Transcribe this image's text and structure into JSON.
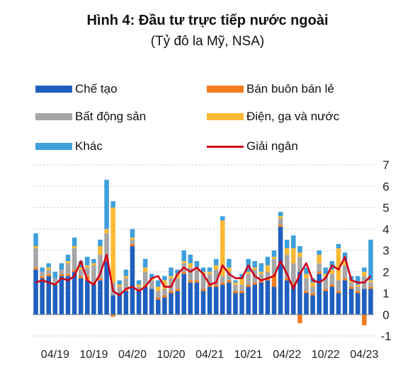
{
  "chart_data": {
    "type": "bar",
    "title": "Hình 4: Đầu tư trực tiếp nước ngoài",
    "subtitle": "(Tỷ đô la Mỹ, NSA)",
    "stacked": true,
    "ylim": [
      -1,
      7
    ],
    "yticks": [
      "-1",
      "0",
      "1",
      "2",
      "3",
      "4",
      "5",
      "6",
      "7"
    ],
    "xtick_labels": [
      "04/19",
      "10/19",
      "04/20",
      "10/20",
      "04/21",
      "10/21",
      "04/22",
      "10/22",
      "04/23"
    ],
    "categories": [
      "01/19",
      "02/19",
      "03/19",
      "04/19",
      "05/19",
      "06/19",
      "07/19",
      "08/19",
      "09/19",
      "10/19",
      "11/19",
      "12/19",
      "01/20",
      "02/20",
      "03/20",
      "04/20",
      "05/20",
      "06/20",
      "07/20",
      "08/20",
      "09/20",
      "10/20",
      "11/20",
      "12/20",
      "01/21",
      "02/21",
      "03/21",
      "04/21",
      "05/21",
      "06/21",
      "07/21",
      "08/21",
      "09/21",
      "10/21",
      "11/21",
      "12/21",
      "01/22",
      "02/22",
      "03/22",
      "04/22",
      "05/22",
      "06/22",
      "07/22",
      "08/22",
      "09/22",
      "10/22",
      "11/22",
      "12/22",
      "01/23",
      "02/23",
      "03/23",
      "04/23",
      "05/23"
    ],
    "colors": {
      "manufacturing": "#1f5fbf",
      "retail": "#f47c20",
      "real_estate": "#a6a6a6",
      "energy": "#fbb935",
      "other": "#3fa0dc",
      "disbursement": "#d0021b"
    },
    "series": [
      {
        "name": "Chế tạo",
        "key": "manufacturing",
        "values": [
          2.1,
          1.7,
          1.8,
          1.4,
          1.8,
          1.8,
          2.0,
          1.7,
          1.6,
          1.4,
          1.6,
          2.5,
          0.9,
          1.0,
          1.1,
          3.2,
          1.1,
          1.3,
          1.2,
          0.7,
          0.8,
          1.0,
          1.1,
          1.9,
          1.5,
          1.5,
          1.1,
          1.3,
          1.3,
          1.4,
          1.5,
          1.0,
          1.0,
          1.3,
          1.4,
          1.5,
          1.6,
          1.3,
          4.1,
          1.6,
          1.4,
          2.0,
          1.0,
          0.9,
          1.9,
          1.1,
          1.3,
          1.0,
          1.6,
          1.2,
          1.0,
          1.2,
          1.2
        ]
      },
      {
        "name": "Bán buôn bán lẻ",
        "key": "retail",
        "values": [
          0.1,
          0.1,
          0.1,
          0.0,
          0.1,
          0.1,
          0.1,
          0.1,
          0.2,
          0.1,
          0.1,
          0.1,
          -0.1,
          0.0,
          0.1,
          0.1,
          0.1,
          0.1,
          0.0,
          0.1,
          0.1,
          0.1,
          0.1,
          0.1,
          0.1,
          0.1,
          0.1,
          0.1,
          0.1,
          0.1,
          0.1,
          0.1,
          0.1,
          0.1,
          0.1,
          0.1,
          0.1,
          0.6,
          0.1,
          0.1,
          0.1,
          -0.4,
          0.1,
          0.1,
          0.1,
          0.1,
          0.1,
          0.1,
          0.1,
          0.1,
          0.1,
          -0.5,
          0.1
        ]
      },
      {
        "name": "Bất động sản",
        "key": "real_estate",
        "values": [
          0.9,
          0.2,
          0.2,
          0.3,
          0.2,
          0.5,
          1.0,
          0.3,
          0.4,
          0.8,
          1.1,
          1.2,
          0.6,
          0.3,
          0.5,
          0.2,
          0.1,
          0.6,
          0.4,
          0.3,
          0.3,
          0.6,
          0.5,
          0.4,
          0.6,
          0.5,
          0.7,
          0.5,
          0.7,
          0.3,
          0.4,
          0.3,
          0.3,
          0.5,
          0.6,
          0.3,
          0.3,
          0.7,
          0.3,
          1.1,
          0.9,
          0.7,
          0.6,
          0.3,
          0.4,
          0.6,
          0.5,
          0.5,
          0.6,
          0.2,
          0.2,
          0.6,
          0.2
        ]
      },
      {
        "name": "Điện, ga và nước",
        "key": "energy",
        "values": [
          0.1,
          0.0,
          0.1,
          0.0,
          0.0,
          0.1,
          0.1,
          0.1,
          0.1,
          0.1,
          0.4,
          0.2,
          3.5,
          0.1,
          0.1,
          0.1,
          0.1,
          0.2,
          0.1,
          0.2,
          0.4,
          0.1,
          0.2,
          0.1,
          0.2,
          0.1,
          0.1,
          0.1,
          0.2,
          2.6,
          0.2,
          0.1,
          0.3,
          0.1,
          0.1,
          0.1,
          0.3,
          0.1,
          0.1,
          0.3,
          0.7,
          0.2,
          0.2,
          0.2,
          0.4,
          0.1,
          0.2,
          1.5,
          0.2,
          0.1,
          0.1,
          0.2,
          0.1
        ]
      },
      {
        "name": "Khác",
        "key": "other",
        "values": [
          0.6,
          0.2,
          0.2,
          0.3,
          0.3,
          0.3,
          0.4,
          0.3,
          0.4,
          0.2,
          0.3,
          2.3,
          0.3,
          0.2,
          0.3,
          0.4,
          0.2,
          0.4,
          0.2,
          0.3,
          0.2,
          0.4,
          0.2,
          0.5,
          0.4,
          0.3,
          0.2,
          0.2,
          0.3,
          0.2,
          0.4,
          0.1,
          0.2,
          0.6,
          0.3,
          0.4,
          0.4,
          0.3,
          0.2,
          0.4,
          0.6,
          0.3,
          0.3,
          0.2,
          0.2,
          0.3,
          0.4,
          0.2,
          0.4,
          0.2,
          0.4,
          0.2,
          1.9
        ]
      }
    ],
    "line": {
      "name": "Giải ngân",
      "key": "disbursement",
      "values": [
        1.5,
        1.6,
        1.5,
        1.4,
        1.7,
        1.6,
        1.8,
        2.5,
        1.6,
        1.4,
        1.9,
        2.8,
        1.1,
        0.9,
        1.2,
        1.3,
        1.1,
        1.3,
        1.7,
        1.8,
        1.3,
        1.3,
        1.9,
        2.2,
        2.0,
        2.2,
        1.9,
        1.4,
        1.5,
        2.3,
        1.9,
        1.7,
        1.7,
        2.3,
        1.8,
        1.6,
        1.7,
        1.8,
        2.5,
        1.9,
        1.2,
        1.9,
        2.4,
        1.6,
        1.5,
        1.7,
        2.3,
        2.1,
        2.7,
        1.6,
        1.5,
        1.5,
        1.8
      ]
    }
  }
}
